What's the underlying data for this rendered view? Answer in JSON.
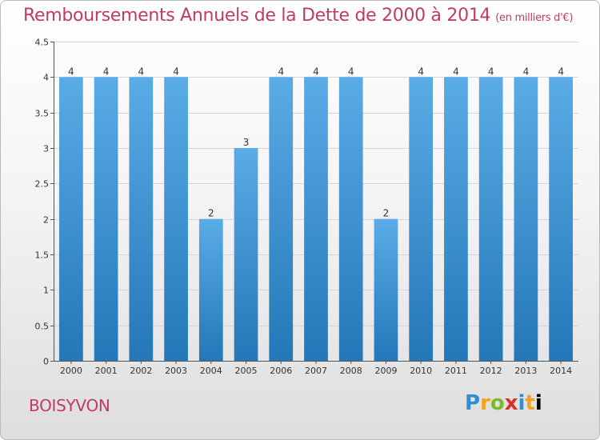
{
  "header": {
    "title": "Remboursements Annuels de la Dette de 2000 à 2014",
    "unit": "(en milliers d'€)"
  },
  "footer": {
    "city": "BOISYVON",
    "logo_letters": [
      "P",
      "r",
      "o",
      "x",
      "i",
      "t",
      "i"
    ]
  },
  "chart_data": {
    "type": "bar",
    "title": "Remboursements Annuels de la Dette de 2000 à 2014",
    "subtitle": "(en milliers d'€)",
    "xlabel": "",
    "ylabel": "",
    "categories": [
      "2000",
      "2001",
      "2002",
      "2003",
      "2004",
      "2005",
      "2006",
      "2007",
      "2008",
      "2009",
      "2010",
      "2011",
      "2012",
      "2013",
      "2014"
    ],
    "values": [
      4,
      4,
      4,
      4,
      2,
      3,
      4,
      4,
      4,
      2,
      4,
      4,
      4,
      4,
      4
    ],
    "data_labels": [
      "4",
      "4",
      "4",
      "4",
      "2",
      "3",
      "4",
      "4",
      "4",
      "2",
      "4",
      "4",
      "4",
      "4",
      "4"
    ],
    "ylim": [
      0,
      4.5
    ],
    "yticks": [
      0,
      0.5,
      1,
      1.5,
      2,
      2.5,
      3,
      3.5,
      4,
      4.5
    ],
    "ytick_labels": [
      "0",
      "0.5",
      "1",
      "1.5",
      "2",
      "2.5",
      "3",
      "3.5",
      "4",
      "4.5"
    ],
    "grid": true,
    "bar_color_top": "#5aace6",
    "bar_color_bottom": "#2477b8"
  }
}
